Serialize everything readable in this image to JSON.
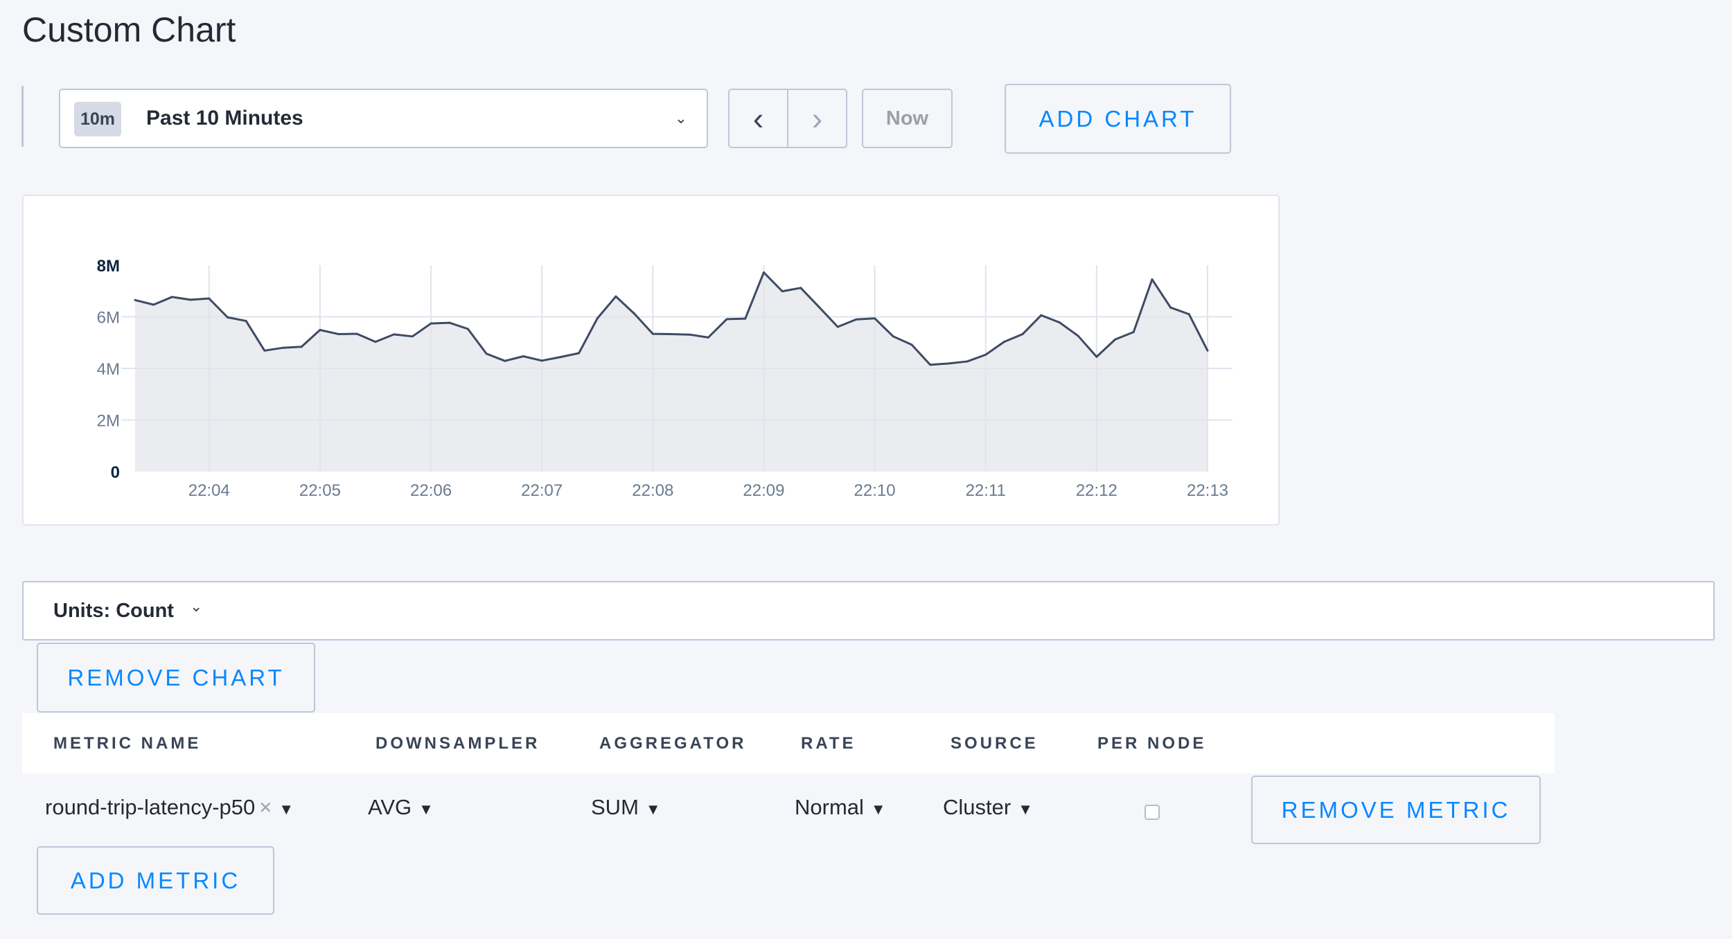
{
  "page": {
    "title": "Custom Chart"
  },
  "time_range": {
    "badge": "10m",
    "label": "Past 10 Minutes",
    "chevron_icon": "chevron-down-icon"
  },
  "nav": {
    "prev_icon": "chevron-left-icon",
    "next_icon": "chevron-right-icon",
    "now_label": "Now"
  },
  "toolbar": {
    "add_chart_label": "ADD CHART"
  },
  "chart_data": {
    "type": "area",
    "line_color": "#3e4b63",
    "fill_color": "#ebecf0",
    "grid": true,
    "y_ticks": [
      "0",
      "2M",
      "4M",
      "6M",
      "8M"
    ],
    "ylim": [
      0,
      8000000
    ],
    "x_ticks": [
      "22:04",
      "22:05",
      "22:06",
      "22:07",
      "22:08",
      "22:09",
      "22:10",
      "22:11",
      "22:12",
      "22:13"
    ],
    "x_start": "22:03:20",
    "x_interval_seconds": 10,
    "values_millions": [
      6.65,
      6.47,
      6.77,
      6.66,
      6.71,
      5.98,
      5.84,
      4.69,
      4.8,
      4.84,
      5.49,
      5.33,
      5.34,
      5.03,
      5.32,
      5.24,
      5.74,
      5.77,
      5.53,
      4.57,
      4.29,
      4.47,
      4.3,
      4.44,
      4.59,
      5.94,
      6.79,
      6.12,
      5.34,
      5.33,
      5.31,
      5.2,
      5.91,
      5.93,
      7.72,
      6.99,
      7.12,
      6.37,
      5.61,
      5.9,
      5.94,
      5.24,
      4.92,
      4.14,
      4.19,
      4.27,
      4.53,
      5.03,
      5.33,
      6.06,
      5.78,
      5.26,
      4.45,
      5.12,
      5.41,
      7.45,
      6.36,
      6.1,
      4.69
    ]
  },
  "units": {
    "label": "Units: Count"
  },
  "remove_chart_label": "REMOVE CHART",
  "table": {
    "headers": [
      "METRIC NAME",
      "DOWNSAMPLER",
      "AGGREGATOR",
      "RATE",
      "SOURCE",
      "PER NODE"
    ],
    "rows": [
      {
        "metric_name": "round-trip-latency-p50",
        "clear": "×",
        "downsampler": "AVG",
        "aggregator": "SUM",
        "rate": "Normal",
        "source": "Cluster",
        "per_node": false,
        "remove_label": "REMOVE METRIC"
      }
    ]
  },
  "add_metric_label": "ADD METRIC"
}
